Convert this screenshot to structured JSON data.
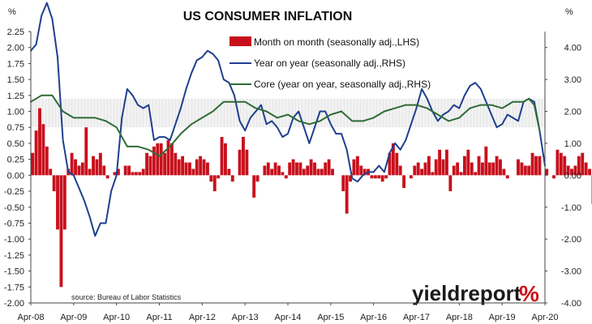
{
  "chart_data": {
    "type": "bar",
    "title": "US CONSUMER INFLATION",
    "left_unit": "%",
    "right_unit": "%",
    "left_axis": {
      "min": -2.0,
      "max": 2.25,
      "step": 0.25
    },
    "right_axis": {
      "min": -4.0,
      "max": 4.5,
      "step": 1.0
    },
    "left_ticks": [
      "2.25",
      "2.00",
      "1.75",
      "1.50",
      "1.25",
      "1.00",
      "0.75",
      "0.50",
      "0.25",
      "0.00",
      "-0.25",
      "-0.50",
      "-0.75",
      "-1.00",
      "-1.25",
      "-1.50",
      "-1.75",
      "-2.00"
    ],
    "right_ticks": [
      "4.00",
      "3.00",
      "2.00",
      "1.00",
      "0.00",
      "-1.00",
      "-2.00",
      "-3.00",
      "-4.00"
    ],
    "x_labels": [
      "Apr-08",
      "Apr-09",
      "Apr-10",
      "Apr-11",
      "Apr-12",
      "Apr-13",
      "Apr-14",
      "Apr-15",
      "Apr-16",
      "Apr-17",
      "Apr-18",
      "Apr-19",
      "Apr-20"
    ],
    "highlight_band": {
      "axis": "right",
      "from": 1.5,
      "to": 2.4,
      "label": ""
    },
    "source": "source: Bureau of Labor Statistics",
    "brand": {
      "text": "yieldreport",
      "symbol": "%",
      "symbol_color": "#cc1016"
    },
    "legend_position": "top-center",
    "grid": false,
    "series": [
      {
        "name": "Month on month (seasonally adj.,LHS)",
        "kind": "bar",
        "axis": "left",
        "color": "#c8101c",
        "start": "2008-04",
        "values": [
          0.35,
          0.7,
          1.05,
          0.8,
          0.45,
          0.1,
          -0.25,
          -0.85,
          -1.75,
          -0.85,
          0.1,
          0.35,
          0.25,
          0.15,
          0.2,
          0.75,
          0.1,
          0.3,
          0.25,
          0.35,
          0.15,
          -0.05,
          0.0,
          0.05,
          0.1,
          0.0,
          0.15,
          0.15,
          0.05,
          0.05,
          0.05,
          0.1,
          0.35,
          0.3,
          0.45,
          0.5,
          0.5,
          0.35,
          0.55,
          0.5,
          0.35,
          0.25,
          0.3,
          0.2,
          0.2,
          0.1,
          0.25,
          0.3,
          0.25,
          0.2,
          -0.1,
          -0.25,
          -0.05,
          0.6,
          0.5,
          0.1,
          -0.1,
          0.0,
          0.4,
          0.6,
          0.4,
          0.0,
          -0.35,
          -0.1,
          0.0,
          0.15,
          0.2,
          0.1,
          0.2,
          0.15,
          0.05,
          -0.05,
          0.2,
          0.25,
          0.2,
          0.2,
          0.1,
          0.15,
          0.25,
          0.2,
          0.1,
          0.1,
          0.2,
          0.25,
          0.1,
          0.0,
          0.0,
          -0.25,
          -0.6,
          -0.1,
          0.25,
          0.3,
          0.15,
          0.1,
          0.1,
          -0.05,
          -0.05,
          -0.05,
          -0.1,
          -0.05,
          0.35,
          0.5,
          0.35,
          0.15,
          -0.2,
          0.0,
          -0.05,
          0.15,
          0.2,
          0.1,
          0.2,
          0.3,
          0.05,
          0.25,
          0.4,
          0.25,
          0.4,
          -0.25,
          0.15,
          0.2,
          0.05,
          0.3,
          0.4,
          0.2,
          0.05,
          0.3,
          0.2,
          0.45,
          0.2,
          0.2,
          0.3,
          0.25,
          0.1,
          -0.05,
          0.0,
          0.0,
          0.25,
          0.2,
          0.15,
          0.15,
          0.35,
          0.3,
          0.3,
          0.0,
          0.1,
          0.0,
          -0.05,
          0.4,
          0.35,
          0.3,
          0.15,
          0.1,
          0.15,
          0.3,
          0.35,
          0.2,
          0.1,
          -0.45,
          -0.8
        ]
      },
      {
        "name": "Year on year (seasonally adj.,RHS)",
        "kind": "line",
        "axis": "right",
        "color": "#1f3f8f",
        "points": [
          [
            0.0,
            3.9
          ],
          [
            0.5,
            4.1
          ],
          [
            1.0,
            5.0
          ],
          [
            1.5,
            5.4
          ],
          [
            2.0,
            4.9
          ],
          [
            2.5,
            3.7
          ],
          [
            3.0,
            1.1
          ],
          [
            3.5,
            0.1
          ],
          [
            4.0,
            0.0
          ],
          [
            4.5,
            -0.4
          ],
          [
            5.0,
            -0.8
          ],
          [
            5.5,
            -1.3
          ],
          [
            6.0,
            -1.9
          ],
          [
            6.5,
            -1.5
          ],
          [
            7.0,
            -1.5
          ],
          [
            7.5,
            -0.5
          ],
          [
            8.0,
            0.0
          ],
          [
            8.5,
            1.8
          ],
          [
            9.0,
            2.7
          ],
          [
            9.5,
            2.5
          ],
          [
            10.0,
            2.2
          ],
          [
            10.5,
            2.1
          ],
          [
            11.0,
            2.2
          ],
          [
            11.5,
            1.1
          ],
          [
            12.0,
            1.2
          ],
          [
            12.5,
            1.2
          ],
          [
            13.0,
            1.1
          ],
          [
            13.5,
            1.6
          ],
          [
            14.0,
            2.1
          ],
          [
            14.5,
            2.7
          ],
          [
            15.0,
            3.2
          ],
          [
            15.5,
            3.6
          ],
          [
            16.0,
            3.7
          ],
          [
            16.5,
            3.9
          ],
          [
            17.0,
            3.8
          ],
          [
            17.5,
            3.6
          ],
          [
            18.0,
            3.0
          ],
          [
            18.5,
            2.9
          ],
          [
            19.0,
            2.5
          ],
          [
            19.5,
            1.7
          ],
          [
            20.0,
            1.4
          ],
          [
            20.5,
            1.8
          ],
          [
            21.0,
            2.0
          ],
          [
            21.5,
            2.2
          ],
          [
            22.0,
            1.6
          ],
          [
            22.5,
            1.7
          ],
          [
            23.0,
            1.5
          ],
          [
            23.5,
            1.2
          ],
          [
            24.0,
            1.3
          ],
          [
            24.5,
            1.8
          ],
          [
            25.0,
            2.0
          ],
          [
            25.5,
            1.5
          ],
          [
            26.0,
            1.0
          ],
          [
            26.5,
            1.5
          ],
          [
            27.0,
            2.0
          ],
          [
            27.5,
            2.0
          ],
          [
            28.0,
            1.6
          ],
          [
            28.5,
            1.3
          ],
          [
            29.0,
            1.3
          ],
          [
            29.5,
            0.8
          ],
          [
            30.0,
            -0.1
          ],
          [
            30.5,
            -0.2
          ],
          [
            31.0,
            0.0
          ],
          [
            31.5,
            0.1
          ],
          [
            32.0,
            0.1
          ],
          [
            32.5,
            0.3
          ],
          [
            33.0,
            0.1
          ],
          [
            33.5,
            0.7
          ],
          [
            34.0,
            1.0
          ],
          [
            34.5,
            0.8
          ],
          [
            35.0,
            1.1
          ],
          [
            35.5,
            1.6
          ],
          [
            36.0,
            2.1
          ],
          [
            36.5,
            2.7
          ],
          [
            37.0,
            2.4
          ],
          [
            37.5,
            2.0
          ],
          [
            38.0,
            1.7
          ],
          [
            38.5,
            1.9
          ],
          [
            39.0,
            2.0
          ],
          [
            39.5,
            2.2
          ],
          [
            40.0,
            2.1
          ],
          [
            40.5,
            2.5
          ],
          [
            41.0,
            2.8
          ],
          [
            41.5,
            2.9
          ],
          [
            42.0,
            2.7
          ],
          [
            42.5,
            2.3
          ],
          [
            43.0,
            1.9
          ],
          [
            43.5,
            1.5
          ],
          [
            44.0,
            1.6
          ],
          [
            44.5,
            1.9
          ],
          [
            45.0,
            1.8
          ],
          [
            45.5,
            1.7
          ],
          [
            46.0,
            2.3
          ],
          [
            46.5,
            2.4
          ],
          [
            47.0,
            2.3
          ],
          [
            47.5,
            1.4
          ],
          [
            48.0,
            0.3
          ]
        ]
      },
      {
        "name": "Core (year on year, seasonally adj.,RHS)",
        "kind": "line",
        "axis": "right",
        "color": "#2e6b36",
        "points": [
          [
            0.0,
            2.3
          ],
          [
            1.0,
            2.5
          ],
          [
            2.0,
            2.5
          ],
          [
            3.0,
            2.0
          ],
          [
            4.0,
            1.8
          ],
          [
            5.0,
            1.8
          ],
          [
            6.0,
            1.8
          ],
          [
            7.0,
            1.7
          ],
          [
            8.0,
            1.5
          ],
          [
            9.0,
            0.9
          ],
          [
            10.0,
            0.9
          ],
          [
            11.0,
            0.8
          ],
          [
            12.0,
            0.6
          ],
          [
            13.0,
            0.9
          ],
          [
            14.0,
            1.3
          ],
          [
            15.0,
            1.6
          ],
          [
            16.0,
            1.8
          ],
          [
            17.0,
            2.0
          ],
          [
            18.0,
            2.3
          ],
          [
            19.0,
            2.3
          ],
          [
            20.0,
            2.3
          ],
          [
            21.0,
            2.1
          ],
          [
            22.0,
            2.0
          ],
          [
            23.0,
            1.8
          ],
          [
            24.0,
            1.9
          ],
          [
            25.0,
            1.7
          ],
          [
            26.0,
            1.6
          ],
          [
            27.0,
            1.7
          ],
          [
            28.0,
            1.9
          ],
          [
            29.0,
            2.0
          ],
          [
            30.0,
            1.7
          ],
          [
            31.0,
            1.7
          ],
          [
            32.0,
            1.8
          ],
          [
            33.0,
            2.0
          ],
          [
            34.0,
            2.1
          ],
          [
            35.0,
            2.2
          ],
          [
            36.0,
            2.2
          ],
          [
            37.0,
            2.1
          ],
          [
            38.0,
            1.9
          ],
          [
            39.0,
            1.7
          ],
          [
            40.0,
            1.8
          ],
          [
            41.0,
            2.1
          ],
          [
            42.0,
            2.2
          ],
          [
            43.0,
            2.2
          ],
          [
            44.0,
            2.1
          ],
          [
            45.0,
            2.3
          ],
          [
            46.0,
            2.3
          ],
          [
            46.5,
            2.4
          ],
          [
            47.0,
            2.2
          ],
          [
            47.5,
            1.4
          ]
        ]
      }
    ]
  }
}
